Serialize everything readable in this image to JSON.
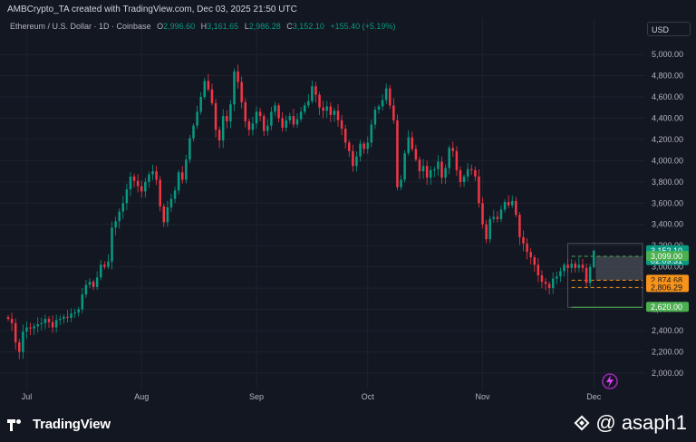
{
  "header": {
    "title": "AMBCrypto_TA created with TradingView.com, Dec 03, 2025 21:50 UTC"
  },
  "legend": {
    "symbol": "Ethereum / U.S. Dollar · 1D · Coinbase",
    "o_label": "O",
    "o_value": "2,996.60",
    "h_label": "H",
    "h_value": "3,161.65",
    "l_label": "L",
    "l_value": "2,986.28",
    "c_label": "C",
    "c_value": "3,152.10",
    "change": "+155.40 (+5.19%)"
  },
  "currency": "USD",
  "colors": {
    "bg": "#131722",
    "up": "#089981",
    "down": "#f23645",
    "grid": "#1e222d",
    "text": "#b2b5be",
    "orange": "#f7931a",
    "green_label": "#4caf50",
    "grey_label": "#787b86"
  },
  "footer": {
    "brand": "TradingView",
    "watermark": "@ asaph1"
  },
  "price_labels": {
    "last_price": "3,152.10",
    "countdown": "02:09:31",
    "level_3099": "3,099.00",
    "level_2874": "2,874.68",
    "level_2806": "2,806.29",
    "level_2620": "2,620.00"
  },
  "chart_data": {
    "type": "candlestick",
    "title": "",
    "ylim": [
      1880,
      5120
    ],
    "y_ticks": [
      2000,
      2200,
      2400,
      2600,
      2800,
      3000,
      3200,
      3400,
      3600,
      3800,
      4000,
      4200,
      4400,
      4600,
      4800,
      5000
    ],
    "y_tick_labels": [
      "2,000.00",
      "2,200.00",
      "2,400.00",
      "2,600.00",
      "2,800.00",
      "3,000.00",
      "3,200.00",
      "3,400.00",
      "3,600.00",
      "3,800.00",
      "4,000.00",
      "4,200.00",
      "4,400.00",
      "4,600.00",
      "4,800.00",
      "5,000.00"
    ],
    "x_labels": [
      {
        "label": "Jul",
        "day": 5
      },
      {
        "label": "Aug",
        "day": 36
      },
      {
        "label": "Sep",
        "day": 67
      },
      {
        "label": "Oct",
        "day": 97
      },
      {
        "label": "Nov",
        "day": 128
      },
      {
        "label": "Dec",
        "day": 158
      }
    ],
    "horizontal_levels": [
      {
        "price": 3099.0,
        "color": "#4caf50",
        "style": "dashed"
      },
      {
        "price": 2874.68,
        "color": "#f7931a",
        "style": "dashed"
      },
      {
        "price": 2806.29,
        "color": "#f7931a",
        "style": "dashed"
      },
      {
        "price": 2620.0,
        "color": "#4caf50",
        "style": "solid"
      }
    ],
    "closes": [
      2510,
      2470,
      2290,
      2200,
      2390,
      2430,
      2420,
      2440,
      2460,
      2470,
      2510,
      2480,
      2430,
      2500,
      2510,
      2530,
      2520,
      2560,
      2570,
      2600,
      2740,
      2830,
      2860,
      2810,
      2900,
      3020,
      3000,
      3050,
      3370,
      3430,
      3520,
      3600,
      3730,
      3850,
      3810,
      3760,
      3710,
      3800,
      3870,
      3900,
      3820,
      3570,
      3420,
      3560,
      3640,
      3720,
      3890,
      3820,
      4010,
      4210,
      4330,
      4460,
      4600,
      4750,
      4670,
      4540,
      4290,
      4190,
      4420,
      4370,
      4530,
      4840,
      4740,
      4550,
      4370,
      4290,
      4350,
      4460,
      4420,
      4280,
      4330,
      4460,
      4520,
      4400,
      4310,
      4380,
      4420,
      4340,
      4390,
      4460,
      4520,
      4560,
      4700,
      4620,
      4500,
      4470,
      4510,
      4430,
      4470,
      4380,
      4300,
      4170,
      4090,
      3950,
      4040,
      4160,
      4110,
      4170,
      4340,
      4480,
      4510,
      4570,
      4680,
      4520,
      4380,
      3750,
      3820,
      4070,
      4220,
      4110,
      4010,
      3900,
      3950,
      3840,
      3910,
      3920,
      3990,
      3840,
      3930,
      4120,
      4090,
      3910,
      3800,
      3850,
      3920,
      3910,
      3850,
      3600,
      3400,
      3260,
      3450,
      3470,
      3450,
      3540,
      3610,
      3580,
      3620,
      3490,
      3280,
      3220,
      3140,
      3090,
      3020,
      2920,
      2860,
      2840,
      2800,
      2890,
      2910,
      2960,
      3020,
      2990,
      3030,
      2990,
      3020,
      2990,
      2850,
      3000,
      3150
    ],
    "series": [
      {
        "name": "Ethereum / U.S. Dollar · 1D · Coinbase",
        "start": "2025-06-27",
        "end": "2025-12-03",
        "last_close": 3152.1
      }
    ],
    "last_candle": {
      "open": 2996.6,
      "high": 3161.65,
      "low": 2986.28,
      "close": 3152.1
    }
  }
}
